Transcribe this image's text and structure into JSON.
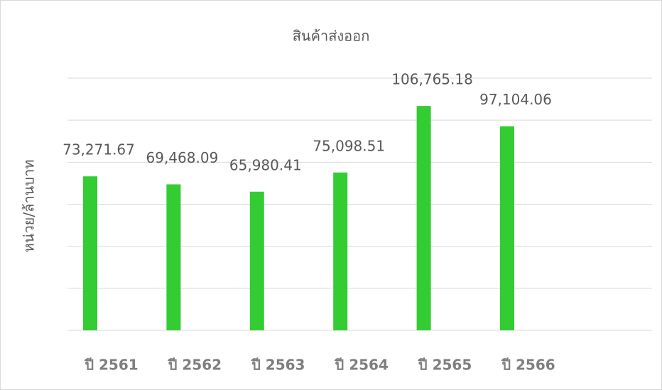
{
  "chart_data": {
    "type": "bar",
    "title": "สินค้าส่งออก",
    "y_label": "หน่วย/ล้านบาท",
    "categories": [
      "ปี 2561",
      "ปี 2562",
      "ปี 2563",
      "ปี 2564",
      "ปี 2565",
      "ปี 2566"
    ],
    "values": [
      73271.67,
      69468.09,
      65980.41,
      75098.51,
      106765.18,
      97104.06
    ],
    "value_labels": [
      "73,271.67",
      "69,468.09",
      "65,980.41",
      "75,098.51",
      "106,765.18",
      "97,104.06"
    ],
    "color": "#33cc33",
    "ylim": [
      0,
      120000
    ],
    "yticks": [
      0,
      20000,
      40000,
      60000,
      80000,
      100000,
      120000
    ],
    "grid": true
  }
}
